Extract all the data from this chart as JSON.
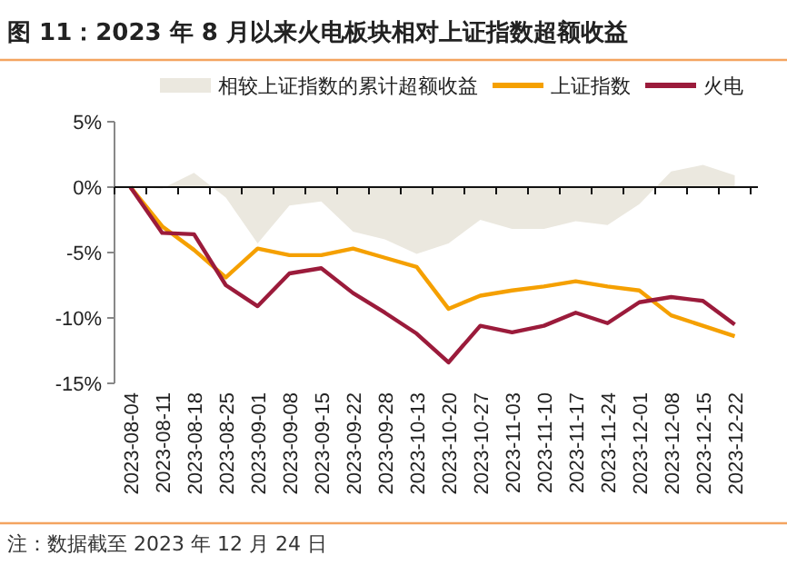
{
  "chart_data": {
    "type": "line",
    "title": "图 11：2023 年 8 月以来火电板块相对上证指数超额收益",
    "categories": [
      "2023-08-04",
      "2023-08-11",
      "2023-08-18",
      "2023-08-25",
      "2023-09-01",
      "2023-09-08",
      "2023-09-15",
      "2023-09-22",
      "2023-09-28",
      "2023-10-13",
      "2023-10-20",
      "2023-10-27",
      "2023-11-03",
      "2023-11-10",
      "2023-11-17",
      "2023-11-24",
      "2023-12-01",
      "2023-12-08",
      "2023-12-15",
      "2023-12-22"
    ],
    "series": [
      {
        "name": "相较上证指数的累计超额收益",
        "type": "area",
        "color": "#ebe8df",
        "values": [
          0,
          -0.1,
          1.1,
          -0.8,
          -4.3,
          -1.4,
          -1.1,
          -3.4,
          -4.0,
          -5.1,
          -4.3,
          -2.5,
          -3.2,
          -3.2,
          -2.6,
          -2.9,
          -1.3,
          1.2,
          1.7,
          0.9
        ]
      },
      {
        "name": "上证指数",
        "color": "#f5a000",
        "values": [
          0,
          -3.0,
          -4.8,
          -6.9,
          -4.7,
          -5.2,
          -5.2,
          -4.7,
          -5.4,
          -6.1,
          -9.3,
          -8.3,
          -7.9,
          -7.6,
          -7.2,
          -7.6,
          -7.9,
          -9.8,
          -10.6,
          -11.4
        ]
      },
      {
        "name": "火电",
        "color": "#9b1b3b",
        "values": [
          0,
          -3.5,
          -3.6,
          -7.5,
          -9.1,
          -6.6,
          -6.2,
          -8.1,
          -9.6,
          -11.2,
          -13.4,
          -10.6,
          -11.1,
          -10.6,
          -9.6,
          -10.4,
          -8.8,
          -8.4,
          -8.7,
          -10.5
        ]
      }
    ],
    "ylim": [
      -15,
      5
    ],
    "yticks": [
      {
        "value": 5,
        "label": "5%"
      },
      {
        "value": 0,
        "label": "0%"
      },
      {
        "value": -5,
        "label": "-5%"
      },
      {
        "value": -10,
        "label": "-10%"
      },
      {
        "value": -15,
        "label": "-15%"
      }
    ],
    "legend": "top",
    "annotations": [
      "注：数据截至 2023 年 12 月 24 日"
    ]
  }
}
